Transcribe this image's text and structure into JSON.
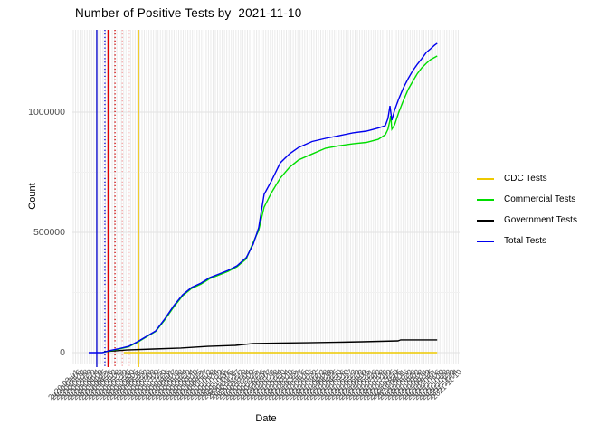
{
  "title": "Number of Positive Tests by  2021-11-10",
  "axes": {
    "x_label": "Date",
    "y_label": "Count",
    "y_ticks": [
      {
        "label": "0",
        "value": 0
      },
      {
        "label": "500000",
        "value": 500000
      },
      {
        "label": "1000000",
        "value": 1000000
      }
    ]
  },
  "legend": {
    "entries": [
      {
        "label": "CDC Tests",
        "color": "#EEC900"
      },
      {
        "label": "Commercial Tests",
        "color": "#00DD00"
      },
      {
        "label": "Government Tests",
        "color": "#000000"
      },
      {
        "label": "Total Tests",
        "color": "#0000EE"
      }
    ]
  },
  "chart_data": {
    "type": "line",
    "title": "Number of Positive Tests by  2021-11-10",
    "xlabel": "Date",
    "ylabel": "Count",
    "ylim": [
      0,
      1342000
    ],
    "yticks": [
      0,
      500000,
      1000000
    ],
    "y_minor_gridlines": [
      250000,
      750000,
      1250000
    ],
    "grid": true,
    "legend_position": "right",
    "x_ticks": {
      "start_date": "2020-03-01",
      "end_date": "2021-11-10",
      "count": 110,
      "rotated_degrees": 45,
      "note": "dense overlapping rotated date labels, illegible in source image"
    },
    "x_unit": "fraction of x-axis span (0 = left edge, 1 = right edge)",
    "series": [
      {
        "name": "CDC Tests",
        "color": "#EEC900",
        "points": [
          [
            0.133,
            0
          ],
          [
            0.942,
            0
          ]
        ]
      },
      {
        "name": "Government Tests",
        "color": "#000000",
        "points": [
          [
            0.082,
            4000
          ],
          [
            0.14,
            11000
          ],
          [
            0.21,
            15000
          ],
          [
            0.28,
            19000
          ],
          [
            0.35,
            26000
          ],
          [
            0.421,
            30000
          ],
          [
            0.467,
            38000
          ],
          [
            0.537,
            40000
          ],
          [
            0.607,
            41000
          ],
          [
            0.678,
            43000
          ],
          [
            0.748,
            45000
          ],
          [
            0.841,
            49000
          ],
          [
            0.848,
            53000
          ],
          [
            0.942,
            53000
          ]
        ]
      },
      {
        "name": "Commercial Tests",
        "color": "#00DD00",
        "points": [
          [
            0.077,
            0
          ],
          [
            0.098,
            8000
          ],
          [
            0.121,
            15000
          ],
          [
            0.145,
            24000
          ],
          [
            0.168,
            43000
          ],
          [
            0.192,
            66000
          ],
          [
            0.215,
            88000
          ],
          [
            0.238,
            135000
          ],
          [
            0.262,
            190000
          ],
          [
            0.285,
            237000
          ],
          [
            0.308,
            267000
          ],
          [
            0.332,
            285000
          ],
          [
            0.355,
            308000
          ],
          [
            0.379,
            323000
          ],
          [
            0.402,
            338000
          ],
          [
            0.425,
            357000
          ],
          [
            0.449,
            390000
          ],
          [
            0.467,
            459000
          ],
          [
            0.481,
            508000
          ],
          [
            0.495,
            605000
          ],
          [
            0.514,
            665000
          ],
          [
            0.537,
            726000
          ],
          [
            0.561,
            771000
          ],
          [
            0.584,
            801000
          ],
          [
            0.619,
            826000
          ],
          [
            0.654,
            850000
          ],
          [
            0.689,
            860000
          ],
          [
            0.724,
            868000
          ],
          [
            0.759,
            874000
          ],
          [
            0.79,
            887000
          ],
          [
            0.808,
            906000
          ],
          [
            0.815,
            929000
          ],
          [
            0.82,
            966000
          ],
          [
            0.822,
            985000
          ],
          [
            0.825,
            929000
          ],
          [
            0.832,
            947000
          ],
          [
            0.843,
            1000000
          ],
          [
            0.855,
            1049000
          ],
          [
            0.867,
            1094000
          ],
          [
            0.879,
            1128000
          ],
          [
            0.89,
            1158000
          ],
          [
            0.902,
            1184000
          ],
          [
            0.914,
            1203000
          ],
          [
            0.925,
            1218000
          ],
          [
            0.935,
            1227000
          ],
          [
            0.942,
            1233000
          ]
        ]
      },
      {
        "name": "Total Tests",
        "color": "#0000EE",
        "points": [
          [
            0.042,
            0
          ],
          [
            0.077,
            0
          ],
          [
            0.098,
            9000
          ],
          [
            0.121,
            17000
          ],
          [
            0.145,
            26000
          ],
          [
            0.168,
            45000
          ],
          [
            0.192,
            68000
          ],
          [
            0.215,
            90000
          ],
          [
            0.238,
            139000
          ],
          [
            0.262,
            195000
          ],
          [
            0.285,
            241000
          ],
          [
            0.308,
            271000
          ],
          [
            0.332,
            289000
          ],
          [
            0.355,
            312000
          ],
          [
            0.379,
            327000
          ],
          [
            0.402,
            342000
          ],
          [
            0.425,
            361000
          ],
          [
            0.449,
            395000
          ],
          [
            0.467,
            451000
          ],
          [
            0.481,
            519000
          ],
          [
            0.495,
            658000
          ],
          [
            0.514,
            714000
          ],
          [
            0.537,
            789000
          ],
          [
            0.561,
            827000
          ],
          [
            0.584,
            853000
          ],
          [
            0.619,
            878000
          ],
          [
            0.654,
            891000
          ],
          [
            0.689,
            902000
          ],
          [
            0.724,
            914000
          ],
          [
            0.759,
            921000
          ],
          [
            0.79,
            934000
          ],
          [
            0.808,
            944000
          ],
          [
            0.815,
            974000
          ],
          [
            0.82,
            1026000
          ],
          [
            0.825,
            966000
          ],
          [
            0.832,
            1008000
          ],
          [
            0.843,
            1056000
          ],
          [
            0.855,
            1101000
          ],
          [
            0.867,
            1139000
          ],
          [
            0.879,
            1172000
          ],
          [
            0.89,
            1197000
          ],
          [
            0.902,
            1222000
          ],
          [
            0.914,
            1248000
          ],
          [
            0.925,
            1263000
          ],
          [
            0.935,
            1278000
          ],
          [
            0.942,
            1286000
          ]
        ]
      }
    ],
    "vlines": [
      {
        "x": 0.063,
        "color": "#0000CC",
        "style": "solid"
      },
      {
        "x": 0.084,
        "color": "#0000CC",
        "style": "dotted"
      },
      {
        "x": 0.092,
        "color": "#E00000",
        "style": "solid"
      },
      {
        "x": 0.11,
        "color": "#D00000",
        "style": "dotted"
      },
      {
        "x": 0.129,
        "color": "#F4A0A0",
        "style": "dotted"
      },
      {
        "x": 0.147,
        "color": "#F8C8C8",
        "style": "dotted"
      },
      {
        "x": 0.171,
        "color": "#F0C400",
        "style": "solid"
      }
    ]
  }
}
